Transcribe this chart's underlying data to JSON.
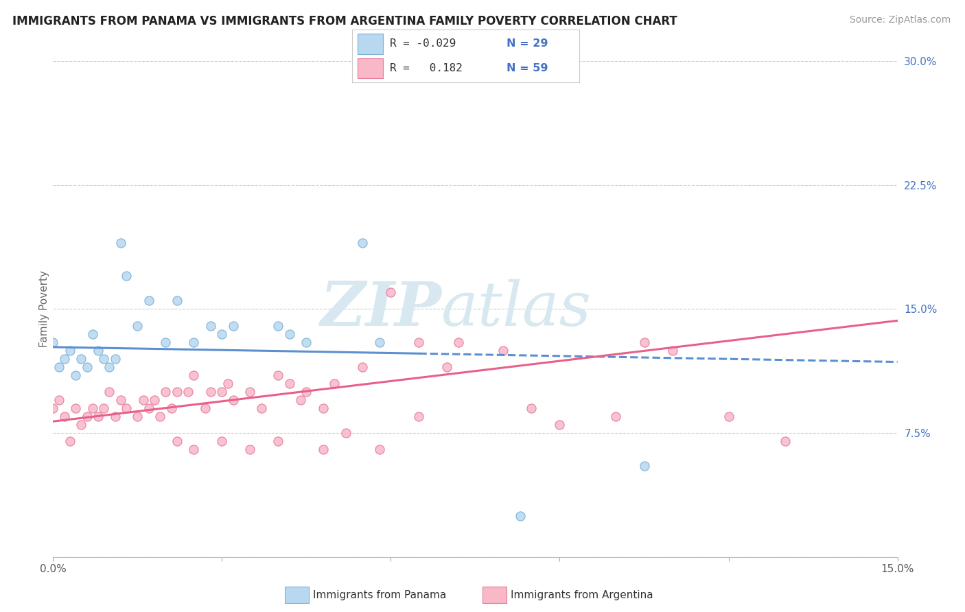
{
  "title": "IMMIGRANTS FROM PANAMA VS IMMIGRANTS FROM ARGENTINA FAMILY POVERTY CORRELATION CHART",
  "source": "Source: ZipAtlas.com",
  "ylabel": "Family Poverty",
  "x_min": 0.0,
  "x_max": 0.15,
  "y_min": 0.0,
  "y_max": 0.3,
  "panama_color_fill": "#B8D8F0",
  "panama_color_edge": "#7BAFD4",
  "argentina_color_fill": "#F8B8C8",
  "argentina_color_edge": "#E87898",
  "panama_trend_color": "#5B8FD0",
  "argentina_trend_color": "#E8608A",
  "panama_x": [
    0.0,
    0.001,
    0.002,
    0.003,
    0.004,
    0.005,
    0.006,
    0.007,
    0.008,
    0.009,
    0.01,
    0.011,
    0.012,
    0.013,
    0.015,
    0.017,
    0.02,
    0.022,
    0.025,
    0.028,
    0.03,
    0.032,
    0.04,
    0.042,
    0.045,
    0.055,
    0.058,
    0.083,
    0.105
  ],
  "panama_y": [
    0.13,
    0.115,
    0.12,
    0.125,
    0.11,
    0.12,
    0.115,
    0.135,
    0.125,
    0.12,
    0.115,
    0.12,
    0.19,
    0.17,
    0.14,
    0.155,
    0.13,
    0.155,
    0.13,
    0.14,
    0.135,
    0.14,
    0.14,
    0.135,
    0.13,
    0.19,
    0.13,
    0.025,
    0.055
  ],
  "argentina_x": [
    0.0,
    0.001,
    0.002,
    0.003,
    0.004,
    0.005,
    0.006,
    0.007,
    0.008,
    0.009,
    0.01,
    0.011,
    0.012,
    0.013,
    0.015,
    0.016,
    0.017,
    0.018,
    0.019,
    0.02,
    0.021,
    0.022,
    0.024,
    0.025,
    0.027,
    0.028,
    0.03,
    0.031,
    0.032,
    0.035,
    0.037,
    0.04,
    0.042,
    0.044,
    0.045,
    0.048,
    0.05,
    0.055,
    0.06,
    0.065,
    0.07,
    0.072,
    0.08,
    0.085,
    0.09,
    0.1,
    0.105,
    0.11,
    0.12,
    0.13,
    0.022,
    0.025,
    0.03,
    0.035,
    0.04,
    0.048,
    0.052,
    0.058,
    0.065
  ],
  "argentina_y": [
    0.09,
    0.095,
    0.085,
    0.07,
    0.09,
    0.08,
    0.085,
    0.09,
    0.085,
    0.09,
    0.1,
    0.085,
    0.095,
    0.09,
    0.085,
    0.095,
    0.09,
    0.095,
    0.085,
    0.1,
    0.09,
    0.1,
    0.1,
    0.11,
    0.09,
    0.1,
    0.1,
    0.105,
    0.095,
    0.1,
    0.09,
    0.11,
    0.105,
    0.095,
    0.1,
    0.09,
    0.105,
    0.115,
    0.16,
    0.13,
    0.115,
    0.13,
    0.125,
    0.09,
    0.08,
    0.085,
    0.13,
    0.125,
    0.085,
    0.07,
    0.07,
    0.065,
    0.07,
    0.065,
    0.07,
    0.065,
    0.075,
    0.065,
    0.085
  ],
  "legend_r1_text": "R = -0.029",
  "legend_n1_text": "N = 29",
  "legend_r2_text": "R =   0.182",
  "legend_n2_text": "N = 59",
  "bottom_label1": "Immigrants from Panama",
  "bottom_label2": "Immigrants from Argentina"
}
